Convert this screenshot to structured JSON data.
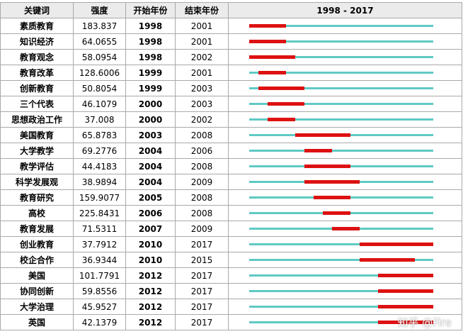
{
  "headers": {
    "keyword": "关键词",
    "strength": "强度",
    "begin": "开始年份",
    "end": "结束年份",
    "range": "1998 - 2017"
  },
  "colors": {
    "timeline": "#5fc9c4",
    "burst": "#dd1111",
    "header_bg": "#ebebeb"
  },
  "watermark": "知乎 @Fire",
  "chart_data": {
    "type": "table",
    "year_range": [
      1998,
      2017
    ],
    "columns": [
      "关键词",
      "强度",
      "开始年份",
      "结束年份",
      "1998 - 2017"
    ],
    "rows": [
      {
        "keyword": "素质教育",
        "strength": "183.837",
        "begin": 1998,
        "end": 2001
      },
      {
        "keyword": "知识经济",
        "strength": "64.0655",
        "begin": 1998,
        "end": 2001
      },
      {
        "keyword": "教育观念",
        "strength": "58.0954",
        "begin": 1998,
        "end": 2002
      },
      {
        "keyword": "教育改革",
        "strength": "128.6006",
        "begin": 1999,
        "end": 2001
      },
      {
        "keyword": "创新教育",
        "strength": "50.8054",
        "begin": 1999,
        "end": 2003
      },
      {
        "keyword": "三个代表",
        "strength": "46.1079",
        "begin": 2000,
        "end": 2003
      },
      {
        "keyword": "思想政治工作",
        "strength": "37.008",
        "begin": 2000,
        "end": 2002
      },
      {
        "keyword": "美国教育",
        "strength": "65.8783",
        "begin": 2003,
        "end": 2008
      },
      {
        "keyword": "大学教学",
        "strength": "69.2776",
        "begin": 2004,
        "end": 2006
      },
      {
        "keyword": "教学评估",
        "strength": "44.4183",
        "begin": 2004,
        "end": 2008
      },
      {
        "keyword": "科学发展观",
        "strength": "38.9894",
        "begin": 2004,
        "end": 2009
      },
      {
        "keyword": "教育研究",
        "strength": "159.9077",
        "begin": 2005,
        "end": 2008
      },
      {
        "keyword": "高校",
        "strength": "225.8431",
        "begin": 2006,
        "end": 2008
      },
      {
        "keyword": "教育发展",
        "strength": "71.5311",
        "begin": 2007,
        "end": 2009
      },
      {
        "keyword": "创业教育",
        "strength": "37.7912",
        "begin": 2010,
        "end": 2017
      },
      {
        "keyword": "校企合作",
        "strength": "36.9344",
        "begin": 2010,
        "end": 2015
      },
      {
        "keyword": "美国",
        "strength": "101.7791",
        "begin": 2012,
        "end": 2017
      },
      {
        "keyword": "协同创新",
        "strength": "59.8556",
        "begin": 2012,
        "end": 2017
      },
      {
        "keyword": "大学治理",
        "strength": "45.9527",
        "begin": 2012,
        "end": 2017
      },
      {
        "keyword": "英国",
        "strength": "42.1379",
        "begin": 2012,
        "end": 2017
      }
    ]
  }
}
